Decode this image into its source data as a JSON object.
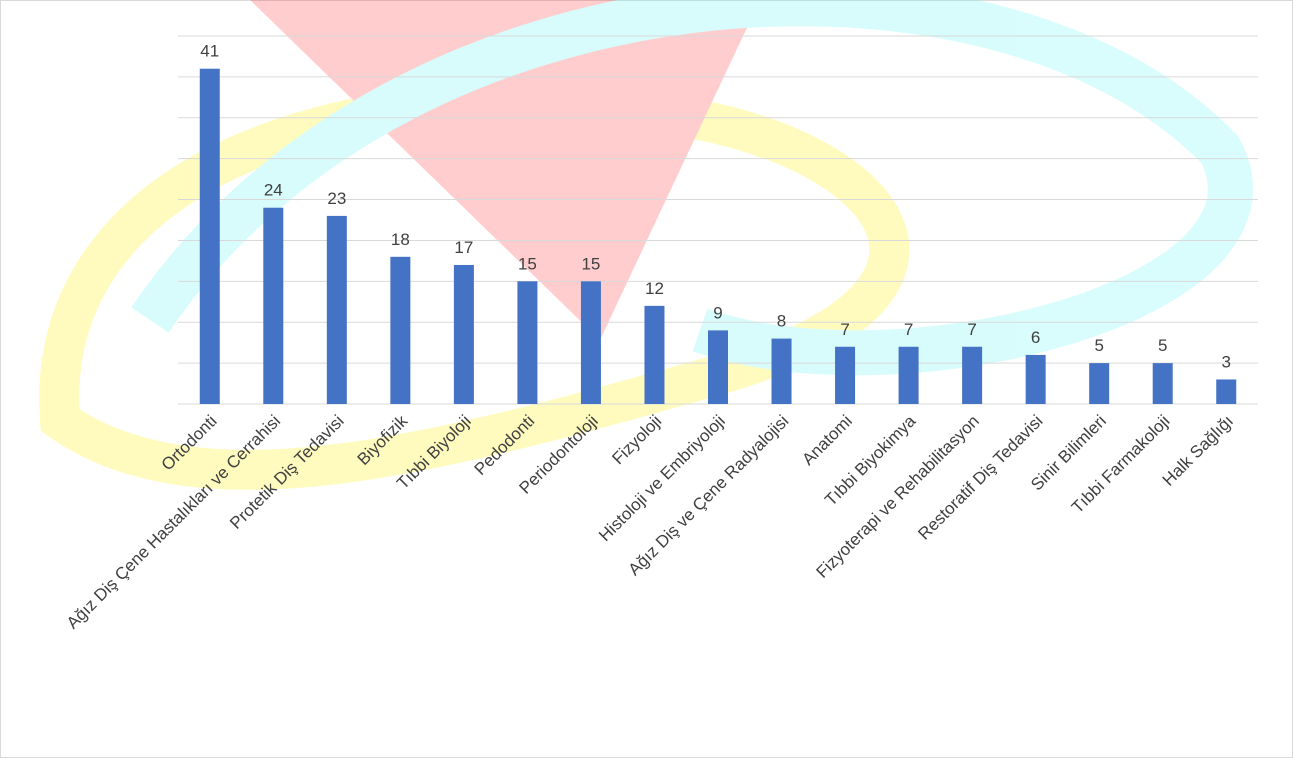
{
  "chart_data": {
    "type": "bar",
    "categories": [
      "Ortodonti",
      "Ağız Diş Çene Hastalıkları ve Cerrahisi",
      "Protetik Diş Tedavisi",
      "Biyofizik",
      "Tıbbi Biyoloji",
      "Pedodonti",
      "Periodontoloji",
      "Fizyoloji",
      "Histoloji ve Embriyoloji",
      "Ağız Diş ve Çene Radyalojisi",
      "Anatomi",
      "Tıbbi Biyokimya",
      "Fizyoterapi ve Rehabilitasyon",
      "Restoratif Diş Tedavisi",
      "Sinir Bilimleri",
      "Tıbbi Farmakoloji",
      "Halk Sağlığı"
    ],
    "values": [
      41,
      24,
      23,
      18,
      17,
      15,
      15,
      12,
      9,
      8,
      7,
      7,
      7,
      6,
      5,
      5,
      3
    ],
    "color": "#4472c4",
    "ylim": [
      0,
      45
    ],
    "yticks": [
      0,
      5,
      10,
      15,
      20,
      25,
      30,
      35,
      40,
      45
    ],
    "grid": true
  }
}
